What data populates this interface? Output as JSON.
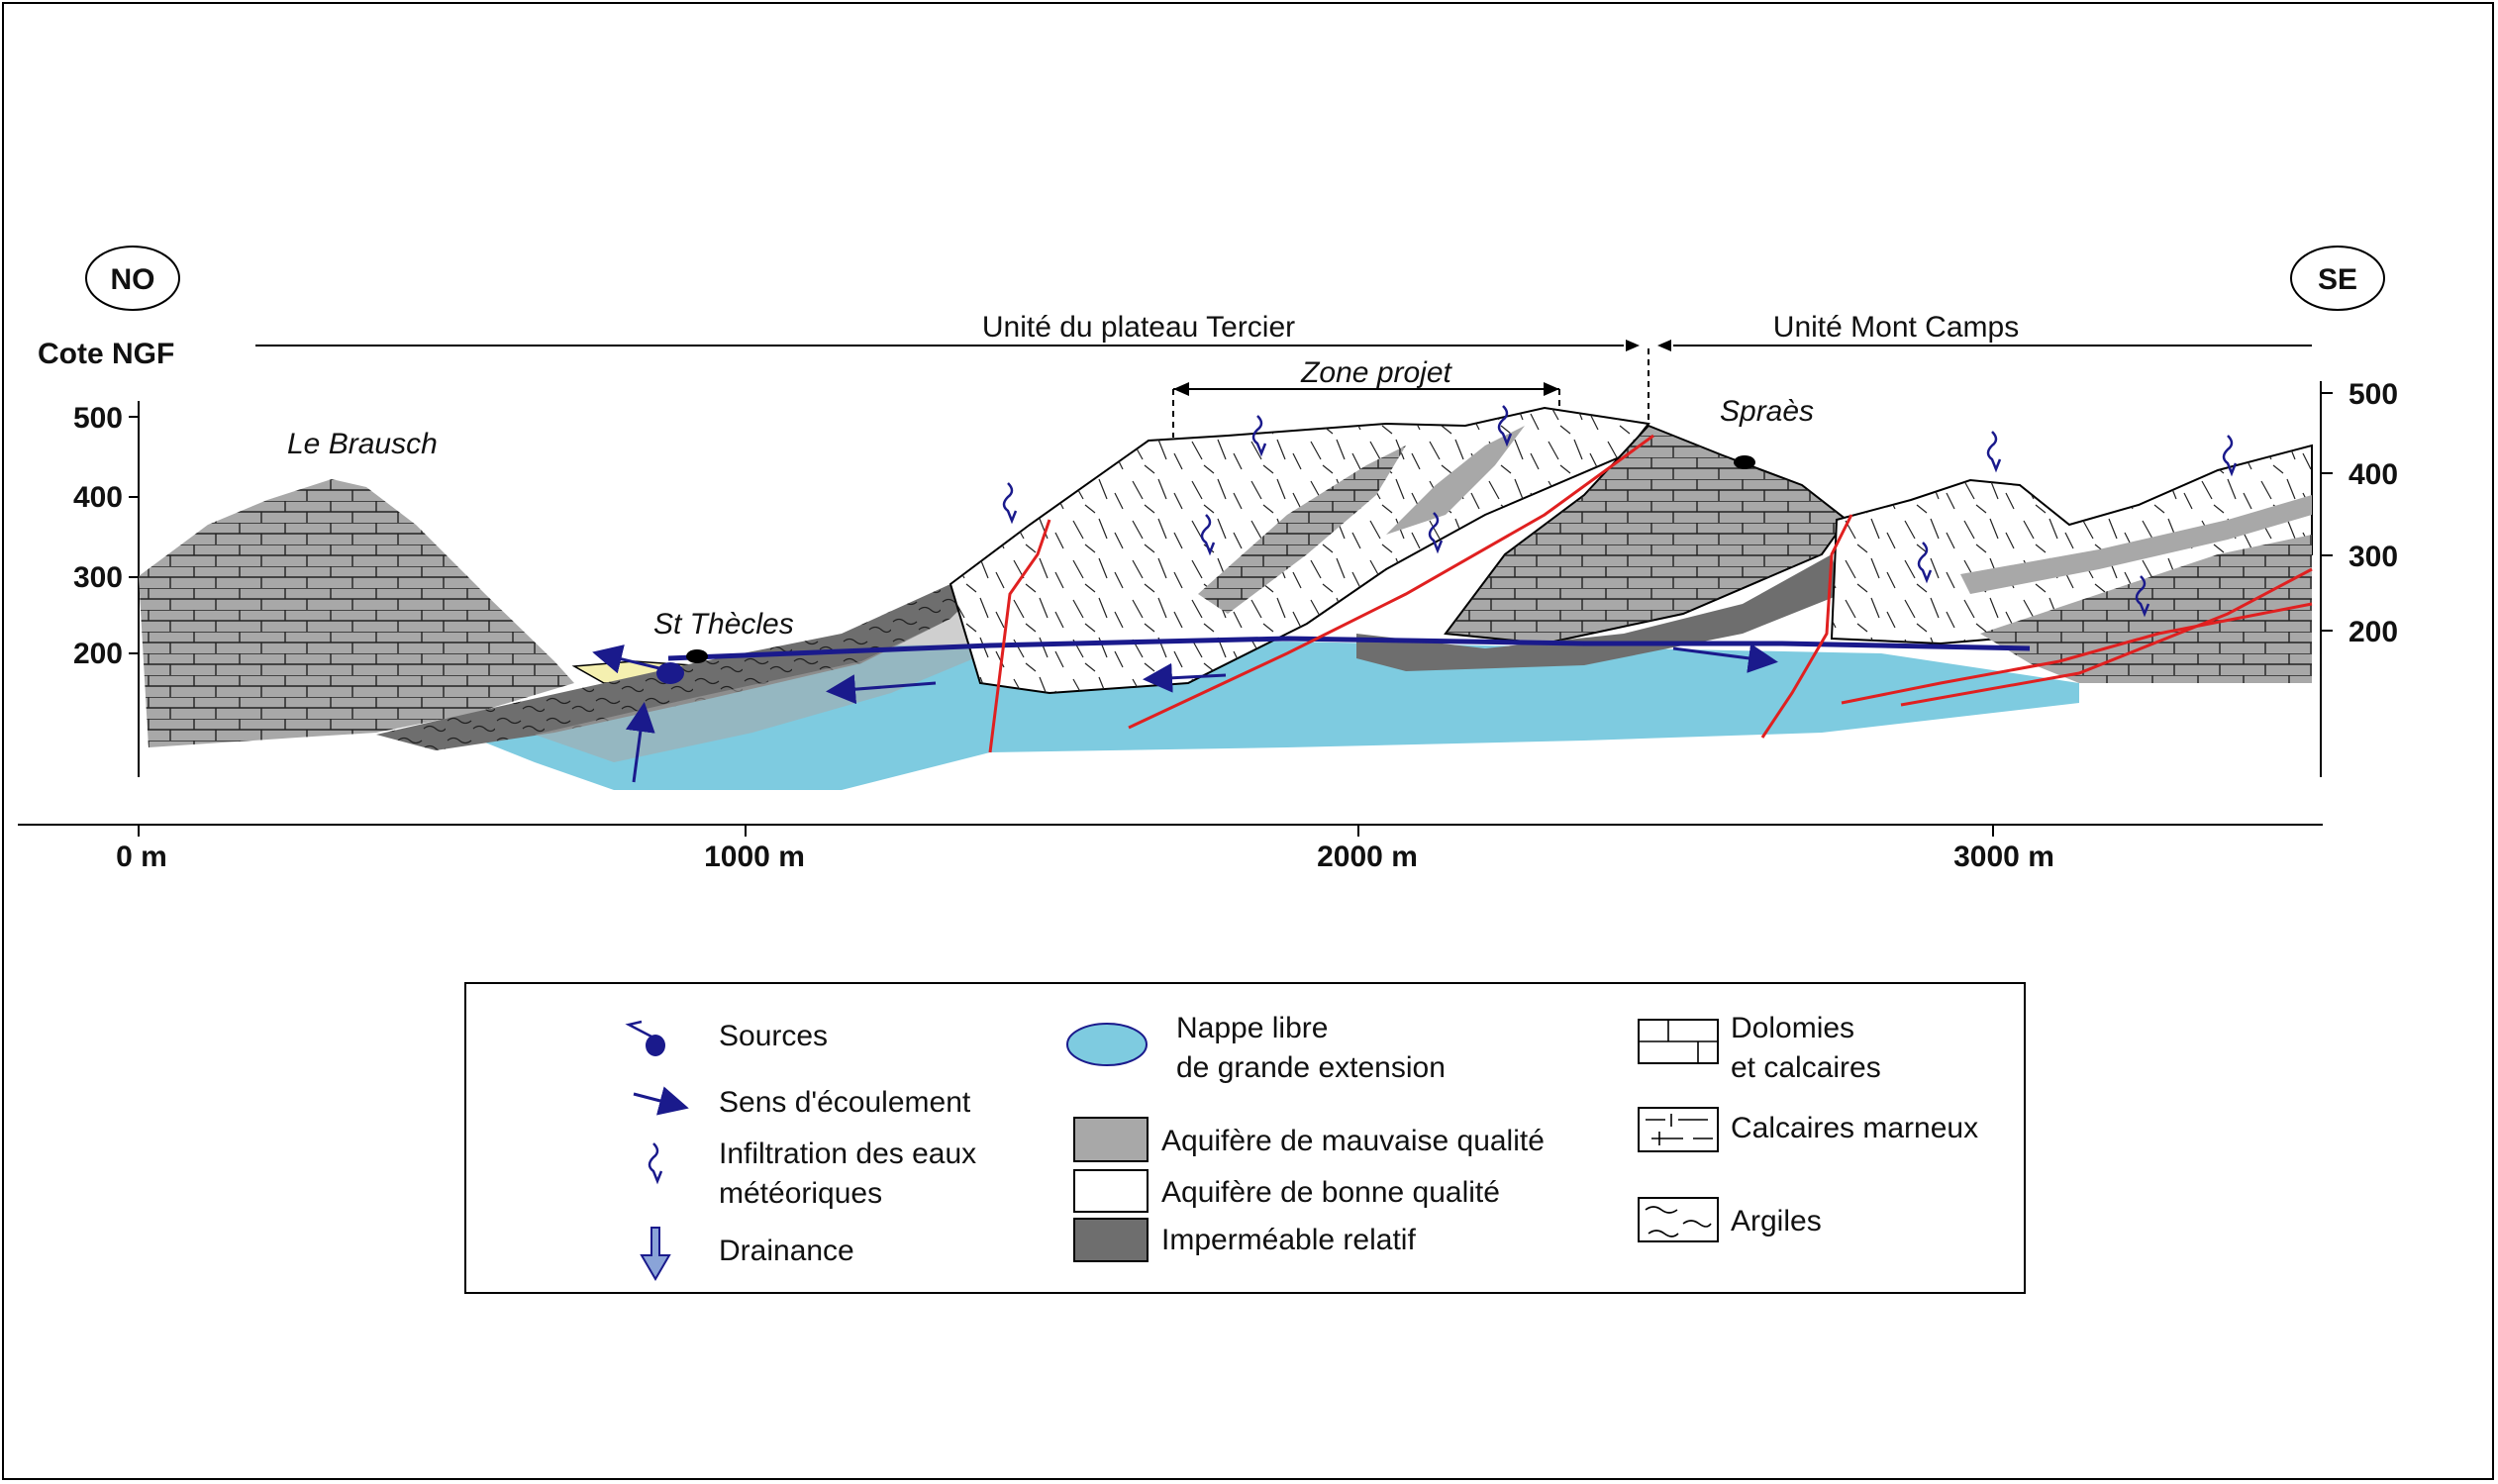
{
  "orientation": {
    "left": "NO",
    "right": "SE"
  },
  "vertical_axis": {
    "title": "Cote NGF",
    "left_ticks": [
      "500",
      "400",
      "300",
      "200"
    ],
    "right_ticks": [
      "500",
      "400",
      "300",
      "200"
    ]
  },
  "horizontal_axis": {
    "ticks": [
      "0 m",
      "1000 m",
      "2000 m",
      "3000 m"
    ]
  },
  "units": {
    "plateau": "Unité du plateau Tercier",
    "mont_camps": "Unité Mont Camps",
    "zone_projet": "Zone projet"
  },
  "places": {
    "le_brausch": "Le Brausch",
    "st_thecles": "St Thècles",
    "spraes": "Spraès"
  },
  "legend": {
    "sources": "Sources",
    "sens": "Sens d'écoulement",
    "infiltration_1": "Infiltration des eaux",
    "infiltration_2": "météoriques",
    "drainance": "Drainance",
    "nappe_1": "Nappe libre",
    "nappe_2": "de grande extension",
    "mauvaise": "Aquifère de mauvaise qualité",
    "bonne": "Aquifère de bonne qualité",
    "impermeable": "Imperméable relatif",
    "dolomies_1": "Dolomies",
    "dolomies_2": "et calcaires",
    "calcaires_marneux": "Calcaires marneux",
    "argiles": "Argiles"
  },
  "colors": {
    "aquifer_bad": "#a8a8a8",
    "aquifer_good": "#ffffff",
    "impermeable": "#6e6e6e",
    "water_table": "#7ecbe0",
    "flow_blue": "#1a1a8c",
    "fault_red": "#e02020",
    "alluvium": "#f5f0b0"
  }
}
